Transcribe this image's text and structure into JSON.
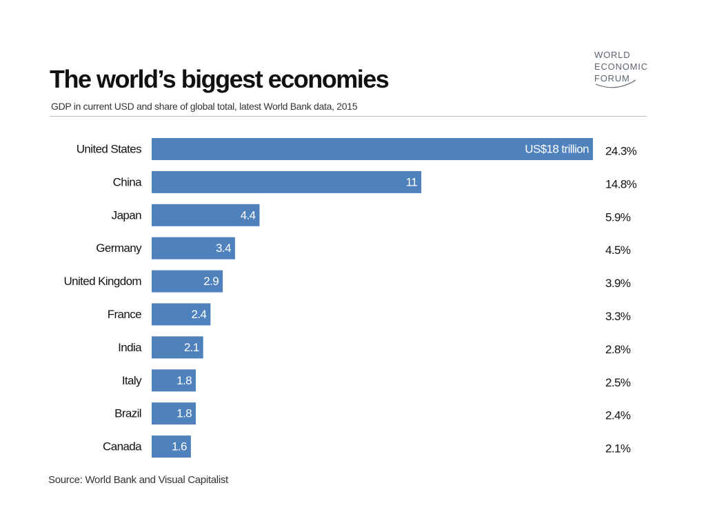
{
  "title": "The world’s biggest economies",
  "subtitle": "GDP in current USD and share of global total, latest World Bank data, 2015",
  "source": "Source: World Bank and Visual Capitalist",
  "logo_text": [
    "WORLD",
    "ECONOMIC",
    "FORUM"
  ],
  "colors": {
    "bar": "#4f81bd",
    "bar_label": "#ffffff",
    "text": "#111111",
    "logo": "#5a6470"
  },
  "chart_data": {
    "type": "bar",
    "orientation": "horizontal",
    "unit": "US$ trillion",
    "categories": [
      "United States",
      "China",
      "Japan",
      "Germany",
      "United Kingdom",
      "France",
      "India",
      "Italy",
      "Brazil",
      "Canada"
    ],
    "values": [
      18,
      11,
      4.4,
      3.4,
      2.9,
      2.4,
      2.1,
      1.8,
      1.8,
      1.6
    ],
    "value_labels": [
      "US$18 trillion",
      "11",
      "4.4",
      "3.4",
      "2.9",
      "2.4",
      "2.1",
      "1.8",
      "1.8",
      "1.6"
    ],
    "shares": [
      "24.3%",
      "14.8%",
      "5.9%",
      "4.5%",
      "3.9%",
      "3.3%",
      "2.8%",
      "2.5%",
      "2.4%",
      "2.1%"
    ],
    "xlim": [
      0,
      18
    ],
    "grid": false,
    "legend": "none"
  }
}
